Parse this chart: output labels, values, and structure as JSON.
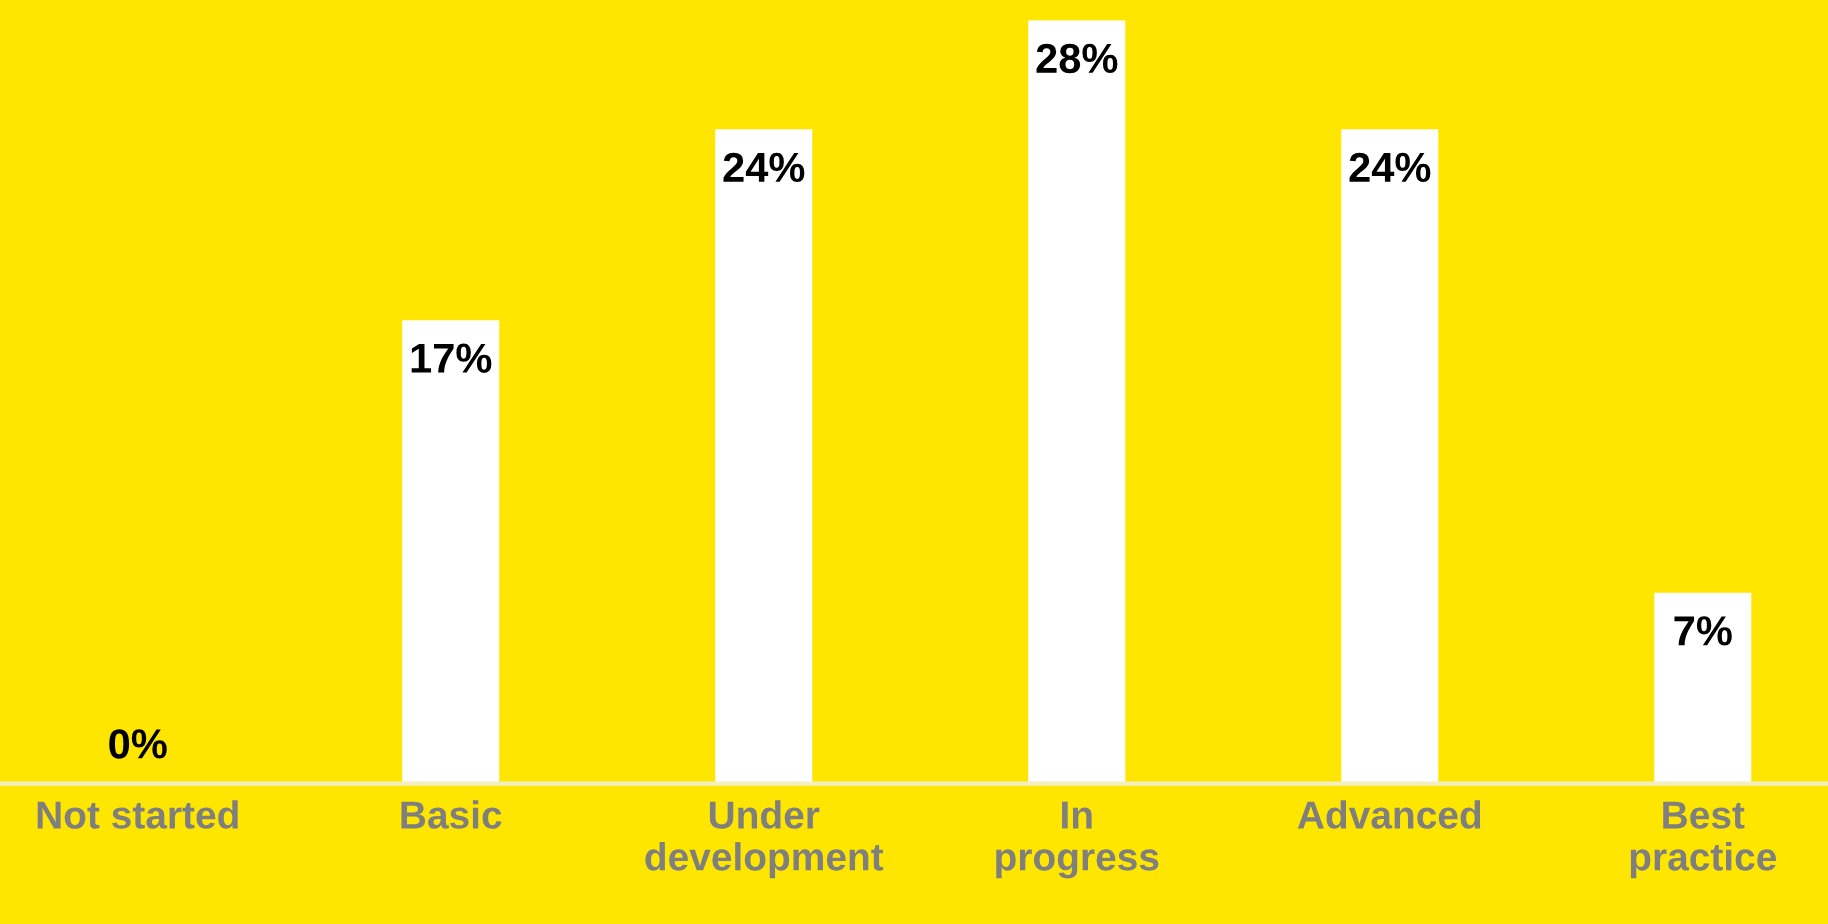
{
  "chart_data": {
    "type": "bar",
    "categories": [
      "Not started",
      "Basic",
      "Under\ndevelopment",
      "In\nprogress",
      "Advanced",
      "Best\npractice"
    ],
    "values": [
      0,
      17,
      24,
      28,
      24,
      7
    ],
    "value_labels": [
      "0%",
      "17%",
      "24%",
      "28%",
      "24%",
      "7%"
    ],
    "color": "#ffffff",
    "tick_labels": "x",
    "grid": false,
    "legend": false
  }
}
